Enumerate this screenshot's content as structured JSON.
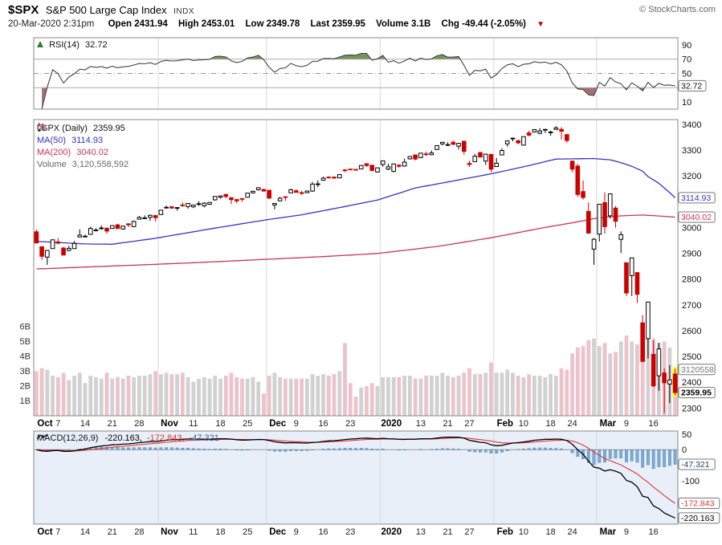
{
  "header": {
    "symbol": "$SPX",
    "title": "S&P 500 Large Cap Index",
    "exchange": "INDX",
    "copyright": "© StockCharts.com",
    "timestamp": "20-Mar-2020 2:31pm",
    "quote": {
      "open_label": "Open",
      "open": "2431.94",
      "high_label": "High",
      "high": "2453.01",
      "low_label": "Low",
      "low": "2349.78",
      "last_label": "Last",
      "last": "2359.95",
      "volume_label": "Volume",
      "volume": "3.1B",
      "chg_label": "Chg",
      "chg": "-49.44 (-2.05%)",
      "direction": "down",
      "down_arrow": "▼"
    }
  },
  "rsi_panel": {
    "label": "RSI(14)",
    "value": "32.72",
    "ticks": [
      90,
      70,
      50,
      30,
      10
    ],
    "boxed": "32.72"
  },
  "main_panel": {
    "legend_symbol": "$SPX (Daily)",
    "legend_last": "2359.95",
    "ma50_label": "MA(50)",
    "ma50_value": "3114.93",
    "ma200_label": "MA(200)",
    "ma200_value": "3040.02",
    "volume_label": "Volume",
    "volume_value": "3,120,558,592",
    "price_ticks": [
      3400,
      3300,
      3200,
      3100,
      3000,
      2900,
      2800,
      2700,
      2600,
      2500,
      2400,
      2300
    ],
    "volume_ticks": [
      [
        6,
        "6B"
      ],
      [
        5,
        "5B"
      ],
      [
        4,
        "4B"
      ],
      [
        3,
        "3B"
      ],
      [
        2,
        "2B"
      ],
      [
        1,
        "1B"
      ]
    ],
    "boxed": {
      "ma50": "3114.93",
      "ma200": "3040.02",
      "volume": "3120558",
      "last": "2359.95"
    }
  },
  "macd_panel": {
    "label": "MACD(12,26,9)",
    "macd_value": "-220.163,",
    "signal_value": "-172.843,",
    "hist_value": "-47.321",
    "ticks": [
      50,
      0,
      -50,
      -100,
      -150,
      -200
    ],
    "boxed": {
      "hist": "-47.321",
      "signal": "-172.843",
      "macd": "-220.163"
    }
  },
  "x_axis": {
    "months": [
      [
        "Oct",
        0
      ],
      [
        "Nov",
        23
      ],
      [
        "Dec",
        43
      ],
      [
        "2020",
        64
      ],
      [
        "Feb",
        85
      ],
      [
        "Mar",
        104
      ]
    ],
    "days": [
      [
        "7",
        4
      ],
      [
        "14",
        9
      ],
      [
        "21",
        14
      ],
      [
        "28",
        19
      ],
      [
        "11",
        29
      ],
      [
        "18",
        34
      ],
      [
        "25",
        39
      ],
      [
        "9",
        48
      ],
      [
        "16",
        53
      ],
      [
        "23",
        58
      ],
      [
        "13",
        71
      ],
      [
        "21",
        76
      ],
      [
        "27",
        80
      ],
      [
        "10",
        90
      ],
      [
        "18",
        95
      ],
      [
        "24",
        99
      ],
      [
        "9",
        109
      ],
      [
        "16",
        114
      ]
    ]
  },
  "colors": {
    "candle_up_fill": "#ffffff",
    "candle_outline": "#000000",
    "candle_down": "#cc0000",
    "ma50": "#3333cc",
    "ma200": "#cc3355",
    "vol_up": "#c9c9c9",
    "vol_down": "#e9b7c2",
    "rsi_line": "#444444",
    "rsi_over_fill": "#6d8f4f",
    "rsi_under_fill": "#9d6a6a",
    "macd_line": "#000000",
    "macd_signal": "#e03535",
    "macd_hist_fill": "#72a3cc",
    "macd_hist_edge": "#4a7aa8",
    "macd_bg": "#e8eff8",
    "highlight": "#ffff33",
    "grid": "#d9d9d9",
    "border": "#888888",
    "down_arrow": "#cc0000"
  },
  "chart_data": {
    "type": "candlestick",
    "title": "$SPX (Daily) with RSI(14), MA(50), MA(200), Volume and MACD(12,26,9)",
    "price_axis_range": [
      2300,
      3400
    ],
    "volume_axis_billions": [
      1,
      6
    ],
    "rsi_axis_range": [
      10,
      90
    ],
    "macd_axis_range": [
      -200,
      50
    ],
    "last_values": {
      "rsi": 32.72,
      "ma50": 3114.93,
      "ma200": 3040.02,
      "volume": 3120558592,
      "close": 2359.95,
      "macd": -220.163,
      "signal": -172.843,
      "hist": -47.321
    },
    "ohlcv_format": [
      "open",
      "high",
      "low",
      "close",
      "volume_billions"
    ],
    "candles": [
      [
        2983,
        2992,
        2938,
        2940,
        3.0
      ],
      [
        2925,
        2925,
        2874,
        2888,
        3.2
      ],
      [
        2885,
        2911,
        2855,
        2911,
        3.1
      ],
      [
        2918,
        2953,
        2918,
        2952,
        2.7
      ],
      [
        2944,
        2959,
        2935,
        2939,
        2.6
      ],
      [
        2920,
        2925,
        2893,
        2893,
        2.9
      ],
      [
        2911,
        2929,
        2907,
        2919,
        2.4
      ],
      [
        2918,
        2948,
        2917,
        2938,
        2.7
      ],
      [
        2963,
        2993,
        2963,
        2970,
        2.9
      ],
      [
        2965,
        2972,
        2962,
        2966,
        2.2
      ],
      [
        2973,
        3003,
        2973,
        2996,
        2.7
      ],
      [
        2989,
        2997,
        2985,
        2990,
        2.6
      ],
      [
        2996,
        3008,
        2991,
        2998,
        2.5
      ],
      [
        2997,
        3000,
        2976,
        2986,
        2.9
      ],
      [
        2996,
        3007,
        2995,
        3007,
        2.5
      ],
      [
        3010,
        3014,
        2995,
        2996,
        2.6
      ],
      [
        2994,
        3005,
        2991,
        3005,
        2.5
      ],
      [
        3014,
        3016,
        3001,
        3010,
        2.7
      ],
      [
        3003,
        3027,
        3001,
        3023,
        2.6
      ],
      [
        3032,
        3044,
        3032,
        3039,
        2.7
      ],
      [
        3035,
        3047,
        3034,
        3037,
        2.7
      ],
      [
        3039,
        3050,
        3026,
        3047,
        2.8
      ],
      [
        3046,
        3046,
        3023,
        3038,
        3.0
      ],
      [
        3050,
        3066,
        3050,
        3067,
        2.8
      ],
      [
        3078,
        3085,
        3074,
        3078,
        2.9
      ],
      [
        3080,
        3083,
        3072,
        3075,
        2.8
      ],
      [
        3075,
        3078,
        3065,
        3077,
        2.8
      ],
      [
        3087,
        3097,
        3080,
        3085,
        2.9
      ],
      [
        3081,
        3093,
        3073,
        3093,
        2.6
      ],
      [
        3080,
        3088,
        3075,
        3087,
        2.3
      ],
      [
        3090,
        3102,
        3084,
        3092,
        2.5
      ],
      [
        3084,
        3098,
        3078,
        3094,
        2.6
      ],
      [
        3090,
        3098,
        3087,
        3097,
        2.5
      ],
      [
        3107,
        3120,
        3104,
        3120,
        2.7
      ],
      [
        3117,
        3124,
        3112,
        3122,
        2.5
      ],
      [
        3128,
        3128,
        3113,
        3120,
        2.7
      ],
      [
        3115,
        3118,
        3091,
        3108,
        2.9
      ],
      [
        3108,
        3110,
        3094,
        3103,
        2.6
      ],
      [
        3112,
        3112,
        3099,
        3110,
        2.5
      ],
      [
        3117,
        3133,
        3117,
        3133,
        2.5
      ],
      [
        3134,
        3142,
        3131,
        3140,
        2.6
      ],
      [
        3146,
        3154,
        3143,
        3154,
        2.3
      ],
      [
        3147,
        3150,
        3139,
        3141,
        1.5
      ],
      [
        3144,
        3144,
        3110,
        3114,
        2.7
      ],
      [
        3087,
        3094,
        3070,
        3093,
        2.9
      ],
      [
        3103,
        3119,
        3102,
        3113,
        2.6
      ],
      [
        3119,
        3119,
        3103,
        3117,
        2.5
      ],
      [
        3134,
        3150,
        3134,
        3146,
        2.5
      ],
      [
        3142,
        3148,
        3135,
        3136,
        2.5
      ],
      [
        3135,
        3142,
        3126,
        3132,
        2.5
      ],
      [
        3135,
        3143,
        3133,
        3141,
        2.5
      ],
      [
        3141,
        3176,
        3138,
        3168,
        2.8
      ],
      [
        3166,
        3182,
        3156,
        3169,
        2.7
      ],
      [
        3183,
        3197,
        3183,
        3191,
        2.8
      ],
      [
        3195,
        3198,
        3191,
        3192,
        2.7
      ],
      [
        3195,
        3198,
        3191,
        3191,
        2.8
      ],
      [
        3192,
        3205,
        3192,
        3205,
        3.0
      ],
      [
        3223,
        3226,
        3214,
        3221,
        4.9
      ],
      [
        3226,
        3227,
        3222,
        3224,
        2.2
      ],
      [
        3225,
        3226,
        3220,
        3223,
        1.3
      ],
      [
        3227,
        3240,
        3227,
        3240,
        1.9
      ],
      [
        3247,
        3248,
        3234,
        3240,
        2.0
      ],
      [
        3241,
        3241,
        3217,
        3221,
        2.2
      ],
      [
        3215,
        3231,
        3212,
        3231,
        2.0
      ],
      [
        3244,
        3258,
        3235,
        3258,
        2.6
      ],
      [
        3226,
        3247,
        3222,
        3235,
        2.6
      ],
      [
        3217,
        3247,
        3214,
        3246,
        2.6
      ],
      [
        3241,
        3245,
        3232,
        3237,
        2.6
      ],
      [
        3238,
        3267,
        3236,
        3253,
        2.7
      ],
      [
        3266,
        3275,
        3263,
        3275,
        2.7
      ],
      [
        3281,
        3282,
        3260,
        3265,
        2.5
      ],
      [
        3271,
        3288,
        3268,
        3288,
        2.5
      ],
      [
        3285,
        3294,
        3277,
        3283,
        2.7
      ],
      [
        3282,
        3298,
        3280,
        3289,
        2.7
      ],
      [
        3302,
        3317,
        3302,
        3317,
        2.7
      ],
      [
        3324,
        3330,
        3318,
        3330,
        2.9
      ],
      [
        3321,
        3330,
        3316,
        3321,
        2.7
      ],
      [
        3330,
        3337,
        3320,
        3322,
        2.6
      ],
      [
        3315,
        3327,
        3302,
        3326,
        2.7
      ],
      [
        3334,
        3334,
        3282,
        3295,
        2.9
      ],
      [
        3248,
        3259,
        3235,
        3244,
        3.2
      ],
      [
        3255,
        3285,
        3253,
        3276,
        2.8
      ],
      [
        3290,
        3293,
        3271,
        3273,
        2.8
      ],
      [
        3257,
        3286,
        3242,
        3284,
        2.9
      ],
      [
        3283,
        3283,
        3214,
        3226,
        3.6
      ],
      [
        3236,
        3269,
        3235,
        3249,
        2.9
      ],
      [
        3281,
        3307,
        3281,
        3298,
        2.9
      ],
      [
        3324,
        3338,
        3313,
        3335,
        3.1
      ],
      [
        3345,
        3348,
        3334,
        3346,
        2.9
      ],
      [
        3336,
        3341,
        3322,
        3328,
        2.7
      ],
      [
        3319,
        3352,
        3318,
        3352,
        2.6
      ],
      [
        3366,
        3375,
        3353,
        3358,
        2.8
      ],
      [
        3370,
        3381,
        3369,
        3379,
        2.7
      ],
      [
        3365,
        3385,
        3361,
        3374,
        2.7
      ],
      [
        3378,
        3381,
        3366,
        3380,
        2.6
      ],
      [
        3369,
        3375,
        3355,
        3370,
        2.8
      ],
      [
        3380,
        3393,
        3378,
        3386,
        2.7
      ],
      [
        3380,
        3389,
        3341,
        3373,
        3.2
      ],
      [
        3360,
        3360,
        3328,
        3337,
        3.1
      ],
      [
        3257,
        3259,
        3214,
        3226,
        4.2
      ],
      [
        3238,
        3246,
        3118,
        3128,
        4.6
      ],
      [
        3139,
        3182,
        3108,
        3116,
        4.7
      ],
      [
        3062,
        3097,
        2977,
        2978,
        5.1
      ],
      [
        2916,
        2959,
        2855,
        2954,
        5.2
      ],
      [
        2974,
        3090,
        2945,
        3090,
        4.7
      ],
      [
        3096,
        3136,
        2976,
        3003,
        4.9
      ],
      [
        3045,
        3130,
        3034,
        3130,
        4.2
      ],
      [
        3075,
        3083,
        2999,
        3024,
        4.3
      ],
      [
        2954,
        2985,
        2901,
        2972,
        5.0
      ],
      [
        2863,
        2863,
        2734,
        2746,
        5.4
      ],
      [
        2813,
        2882,
        2734,
        2882,
        5.0
      ],
      [
        2825,
        2825,
        2707,
        2741,
        4.8
      ],
      [
        2630,
        2660,
        2478,
        2481,
        5.4
      ],
      [
        2569,
        2711,
        2492,
        2711,
        5.3
      ],
      [
        2508,
        2562,
        2381,
        2386,
        5.2
      ],
      [
        2425,
        2553,
        2367,
        2529,
        4.9
      ],
      [
        2436,
        2454,
        2280,
        2398,
        5.0
      ],
      [
        2393,
        2466,
        2319,
        2409,
        4.6
      ],
      [
        2431.94,
        2453.01,
        2349.78,
        2359.95,
        3.12
      ]
    ],
    "ma50_points": [
      [
        0,
        2946
      ],
      [
        9,
        2936
      ],
      [
        14,
        2935
      ],
      [
        22,
        2958
      ],
      [
        32,
        2994
      ],
      [
        42,
        3028
      ],
      [
        49,
        3049
      ],
      [
        56,
        3077
      ],
      [
        63,
        3106
      ],
      [
        70,
        3153
      ],
      [
        77,
        3180
      ],
      [
        84,
        3208
      ],
      [
        90,
        3235
      ],
      [
        96,
        3265
      ],
      [
        103,
        3267
      ],
      [
        106,
        3262
      ],
      [
        108,
        3251
      ],
      [
        110,
        3237
      ],
      [
        112,
        3218
      ],
      [
        113,
        3197
      ],
      [
        115,
        3171
      ],
      [
        116,
        3153
      ],
      [
        117,
        3135
      ],
      [
        118,
        3114.93
      ]
    ],
    "ma200_points": [
      [
        0,
        2839
      ],
      [
        11,
        2848
      ],
      [
        22,
        2857
      ],
      [
        32,
        2866
      ],
      [
        42,
        2876
      ],
      [
        53,
        2887
      ],
      [
        63,
        2899
      ],
      [
        74,
        2926
      ],
      [
        84,
        2960
      ],
      [
        94,
        3000
      ],
      [
        99,
        3018
      ],
      [
        103,
        3034
      ],
      [
        106,
        3042
      ],
      [
        109,
        3046
      ],
      [
        112,
        3048
      ],
      [
        114,
        3046
      ],
      [
        116,
        3043
      ],
      [
        118,
        3040.02
      ]
    ],
    "indicators": {
      "rsi_period": 14,
      "macd_params": [
        12,
        26,
        9
      ]
    },
    "last_candle_highlighted": true
  }
}
